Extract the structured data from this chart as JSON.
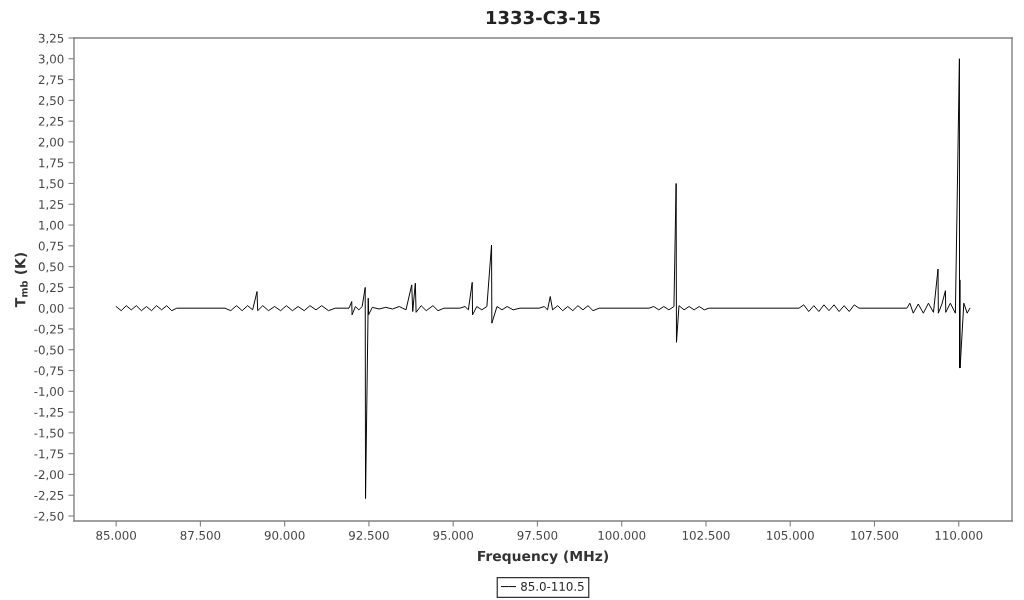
{
  "chart_data": {
    "type": "line",
    "title": "1333-C3-15",
    "xlabel": "Frequency (MHz)",
    "ylabel": "T$_{mb}$ (K)",
    "x": [
      85000,
      85150,
      85300,
      85450,
      85600,
      85750,
      85900,
      86050,
      86200,
      86350,
      86500,
      86650,
      86800,
      88230,
      88400,
      88570,
      88740,
      88900,
      89050,
      89180,
      89200,
      89350,
      89520,
      89700,
      89880,
      90050,
      90230,
      90400,
      90580,
      90750,
      90930,
      91100,
      91300,
      91500,
      91910,
      91990,
      92000,
      92100,
      92200,
      92300,
      92390,
      92400,
      92480,
      92490,
      92600,
      92800,
      93000,
      93200,
      93400,
      93600,
      93770,
      93800,
      93877,
      93900,
      94050,
      94200,
      94400,
      94550,
      94730,
      95200,
      95350,
      95450,
      95565,
      95575,
      95700,
      95850,
      96000,
      96138,
      96148,
      96300,
      96450,
      96600,
      96780,
      96980,
      97550,
      97700,
      97800,
      97880,
      97950,
      98100,
      98250,
      98400,
      98550,
      98700,
      98850,
      99000,
      99150,
      99330,
      100810,
      100950,
      101100,
      101250,
      101400,
      101550,
      101615,
      101625,
      101700,
      101850,
      102000,
      102150,
      102300,
      102450,
      102590,
      105260,
      105400,
      105550,
      105700,
      105850,
      106000,
      106150,
      106300,
      106450,
      106600,
      106750,
      106900,
      107040,
      108460,
      108550,
      108650,
      108800,
      108950,
      109100,
      109250,
      109385,
      109395,
      109500,
      109605,
      109615,
      109750,
      109900,
      110020,
      110024,
      110034,
      110040,
      110150,
      110250,
      110330
    ],
    "series": [
      {
        "name": "85.0-110.5",
        "color": "#000000",
        "values": [
          0.02,
          -0.03,
          0.03,
          -0.02,
          0.03,
          -0.03,
          0.02,
          -0.03,
          0.03,
          -0.02,
          0.03,
          -0.03,
          0.0,
          0.0,
          -0.03,
          0.03,
          -0.03,
          0.03,
          -0.02,
          0.2,
          -0.03,
          0.03,
          -0.03,
          0.02,
          -0.03,
          0.03,
          -0.03,
          0.02,
          -0.03,
          0.03,
          -0.02,
          0.03,
          -0.03,
          0.0,
          0.0,
          0.08,
          -0.08,
          0.02,
          -0.02,
          0.02,
          0.25,
          -2.29,
          0.12,
          -0.08,
          0.01,
          -0.01,
          0.01,
          -0.01,
          0.02,
          -0.02,
          0.28,
          -0.04,
          0.3,
          -0.05,
          0.03,
          -0.03,
          0.03,
          -0.03,
          0.0,
          0.0,
          0.02,
          -0.02,
          0.31,
          -0.08,
          0.02,
          -0.02,
          0.02,
          0.76,
          -0.18,
          0.02,
          -0.02,
          0.02,
          -0.02,
          0.0,
          0.0,
          0.02,
          -0.02,
          0.14,
          -0.02,
          0.03,
          -0.03,
          0.02,
          -0.03,
          0.03,
          -0.02,
          0.03,
          -0.03,
          0.0,
          0.0,
          0.02,
          -0.02,
          0.02,
          -0.02,
          0.02,
          1.5,
          -0.41,
          0.03,
          -0.02,
          0.02,
          -0.02,
          0.02,
          -0.02,
          0.0,
          0.0,
          0.04,
          -0.04,
          0.03,
          -0.04,
          0.04,
          -0.03,
          0.04,
          -0.04,
          0.03,
          -0.04,
          0.04,
          0.0,
          0.0,
          0.06,
          -0.06,
          0.05,
          -0.06,
          0.06,
          -0.05,
          0.47,
          -0.06,
          0.05,
          0.21,
          -0.05,
          0.06,
          -0.06,
          3.0,
          -0.72,
          0.34,
          -0.72,
          0.06,
          -0.06,
          0.0
        ]
      }
    ],
    "xlim": [
      83750,
      111580
    ],
    "xticks": [
      {
        "value": 85000,
        "label": "85.000"
      },
      {
        "value": 87500,
        "label": "87.500"
      },
      {
        "value": 90000,
        "label": "90.000"
      },
      {
        "value": 92500,
        "label": "92.500"
      },
      {
        "value": 95000,
        "label": "95.000"
      },
      {
        "value": 97500,
        "label": "97.500"
      },
      {
        "value": 100000,
        "label": "100.000"
      },
      {
        "value": 102500,
        "label": "102.500"
      },
      {
        "value": 105000,
        "label": "105.000"
      },
      {
        "value": 107500,
        "label": "107.500"
      },
      {
        "value": 110000,
        "label": "110.000"
      }
    ],
    "ylim": [
      -2.56,
      3.25
    ],
    "yticks": [
      {
        "value": -2.5,
        "label": "-2,50"
      },
      {
        "value": -2.25,
        "label": "-2,25"
      },
      {
        "value": -2.0,
        "label": "-2,00"
      },
      {
        "value": -1.75,
        "label": "-1,75"
      },
      {
        "value": -1.5,
        "label": "-1,50"
      },
      {
        "value": -1.25,
        "label": "-1,25"
      },
      {
        "value": -1.0,
        "label": "-1,00"
      },
      {
        "value": -0.75,
        "label": "-0,75"
      },
      {
        "value": -0.5,
        "label": "-0,50"
      },
      {
        "value": -0.25,
        "label": "-0,25"
      },
      {
        "value": 0,
        "label": "0,00"
      },
      {
        "value": 0.25,
        "label": "0,25"
      },
      {
        "value": 0.5,
        "label": "0,50"
      },
      {
        "value": 0.75,
        "label": "0,75"
      },
      {
        "value": 1.0,
        "label": "1,00"
      },
      {
        "value": 1.25,
        "label": "1,25"
      },
      {
        "value": 1.5,
        "label": "1,50"
      },
      {
        "value": 1.75,
        "label": "1,75"
      },
      {
        "value": 2.0,
        "label": "2,00"
      },
      {
        "value": 2.25,
        "label": "2,25"
      },
      {
        "value": 2.5,
        "label": "2,50"
      },
      {
        "value": 2.75,
        "label": "2,75"
      },
      {
        "value": 3.0,
        "label": "3,00"
      },
      {
        "value": 3.25,
        "label": "3,25"
      }
    ],
    "legend": "bottom"
  }
}
